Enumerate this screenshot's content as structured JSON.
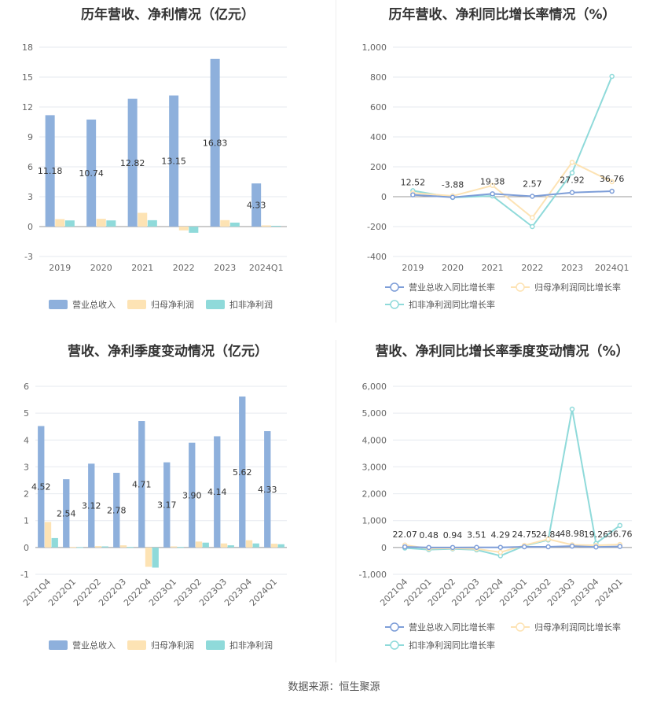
{
  "source_text": "数据来源：恒生聚源",
  "chart_data": [
    {
      "id": "annual_rev_profit",
      "type": "bar",
      "title": "历年营收、净利情况（亿元）",
      "categories": [
        "2019",
        "2020",
        "2021",
        "2022",
        "2023",
        "2024Q1"
      ],
      "series": [
        {
          "name": "营业总收入",
          "color": "#8eb0dc",
          "values": [
            11.18,
            10.74,
            12.82,
            13.15,
            16.83,
            4.33
          ],
          "labels": [
            "11.18",
            "10.74",
            "12.82",
            "13.15",
            "16.83",
            "4.33"
          ]
        },
        {
          "name": "归母净利润",
          "color": "#fde3b4",
          "values": [
            0.75,
            0.78,
            1.38,
            -0.38,
            0.65,
            0.12
          ]
        },
        {
          "name": "扣非净利润",
          "color": "#8fdada",
          "values": [
            0.62,
            0.62,
            0.64,
            -0.62,
            0.4,
            0.08
          ]
        }
      ],
      "ylim": [
        -3,
        18
      ],
      "yticks": [
        "-3",
        "0",
        "3",
        "6",
        "9",
        "12",
        "15",
        "18"
      ],
      "ytick_values": [
        -3,
        0,
        3,
        6,
        9,
        12,
        15,
        18
      ],
      "legend": "bottom"
    },
    {
      "id": "annual_growth",
      "type": "line",
      "title": "历年营收、净利同比增长率情况（%）",
      "categories": [
        "2019",
        "2020",
        "2021",
        "2022",
        "2023",
        "2024Q1"
      ],
      "series": [
        {
          "name": "营业总收入同比增长率",
          "color": "#7e9ed8",
          "values": [
            12.52,
            -3.88,
            19.38,
            2.57,
            27.92,
            36.76
          ],
          "labels": [
            "12.52",
            "-3.88",
            "19.38",
            "2.57",
            "27.92",
            "36.76"
          ]
        },
        {
          "name": "归母净利润同比增长率",
          "color": "#fde3b4",
          "values": [
            25,
            5,
            75,
            -140,
            230,
            100
          ]
        },
        {
          "name": "扣非净利润同比增长率",
          "color": "#8fdada",
          "values": [
            40,
            -5,
            5,
            -200,
            160,
            805
          ]
        }
      ],
      "ylim": [
        -400,
        1000
      ],
      "yticks": [
        "-400",
        "-200",
        "0",
        "200",
        "400",
        "600",
        "800",
        "1,000"
      ],
      "ytick_values": [
        -400,
        -200,
        0,
        200,
        400,
        600,
        800,
        1000
      ],
      "legend": "bottom"
    },
    {
      "id": "quarterly_rev_profit",
      "type": "bar",
      "title": "营收、净利季度变动情况（亿元）",
      "categories": [
        "2021Q4",
        "2022Q1",
        "2022Q2",
        "2022Q3",
        "2022Q4",
        "2023Q1",
        "2023Q2",
        "2023Q3",
        "2023Q4",
        "2024Q1"
      ],
      "series": [
        {
          "name": "营业总收入",
          "color": "#8eb0dc",
          "values": [
            4.52,
            2.54,
            3.12,
            2.78,
            4.71,
            3.17,
            3.9,
            4.14,
            5.62,
            4.33
          ],
          "labels": [
            "4.52",
            "2.54",
            "3.12",
            "2.78",
            "4.71",
            "3.17",
            "3.90",
            "4.14",
            "5.62",
            "4.33"
          ]
        },
        {
          "name": "归母净利润",
          "color": "#fde3b4",
          "values": [
            0.95,
            0.02,
            0.05,
            0.08,
            -0.72,
            0.04,
            0.22,
            0.15,
            0.27,
            0.14
          ]
        },
        {
          "name": "扣非净利润",
          "color": "#8fdada",
          "values": [
            0.35,
            0.01,
            0.04,
            0.02,
            -0.75,
            0.02,
            0.18,
            0.08,
            0.15,
            0.12
          ]
        }
      ],
      "ylim": [
        -1,
        6
      ],
      "yticks": [
        "-1",
        "0",
        "1",
        "2",
        "3",
        "4",
        "5",
        "6"
      ],
      "ytick_values": [
        -1,
        0,
        1,
        2,
        3,
        4,
        5,
        6
      ],
      "legend": "bottom"
    },
    {
      "id": "quarterly_growth",
      "type": "line",
      "title": "营收、净利同比增长率季度变动情况（%）",
      "categories": [
        "2021Q4",
        "2022Q1",
        "2022Q2",
        "2022Q3",
        "2022Q4",
        "2023Q1",
        "2023Q2",
        "2023Q3",
        "2023Q4",
        "2024Q1"
      ],
      "series": [
        {
          "name": "营业总收入同比增长率",
          "color": "#7e9ed8",
          "values": [
            22.07,
            0.48,
            0.94,
            3.51,
            4.29,
            24.75,
            24.84,
            48.98,
            19.26,
            36.76
          ],
          "labels": [
            "22.07",
            "0.48",
            "0.94",
            "3.51",
            "4.29",
            "24.75",
            "24.84",
            "48.98",
            "19.26",
            "36.76"
          ]
        },
        {
          "name": "归母净利润同比增长率",
          "color": "#fde3b4",
          "values": [
            90,
            -40,
            -30,
            -50,
            -180,
            80,
            310,
            100,
            80,
            110
          ]
        },
        {
          "name": "扣非净利润同比增长率",
          "color": "#8fdada",
          "values": [
            -20,
            -80,
            -50,
            -90,
            -310,
            60,
            280,
            5150,
            150,
            820
          ]
        }
      ],
      "ylim": [
        -1000,
        6000
      ],
      "yticks": [
        "-1,000",
        "0",
        "1,000",
        "2,000",
        "3,000",
        "4,000",
        "5,000",
        "6,000"
      ],
      "ytick_values": [
        -1000,
        0,
        1000,
        2000,
        3000,
        4000,
        5000,
        6000
      ],
      "legend": "bottom"
    }
  ]
}
